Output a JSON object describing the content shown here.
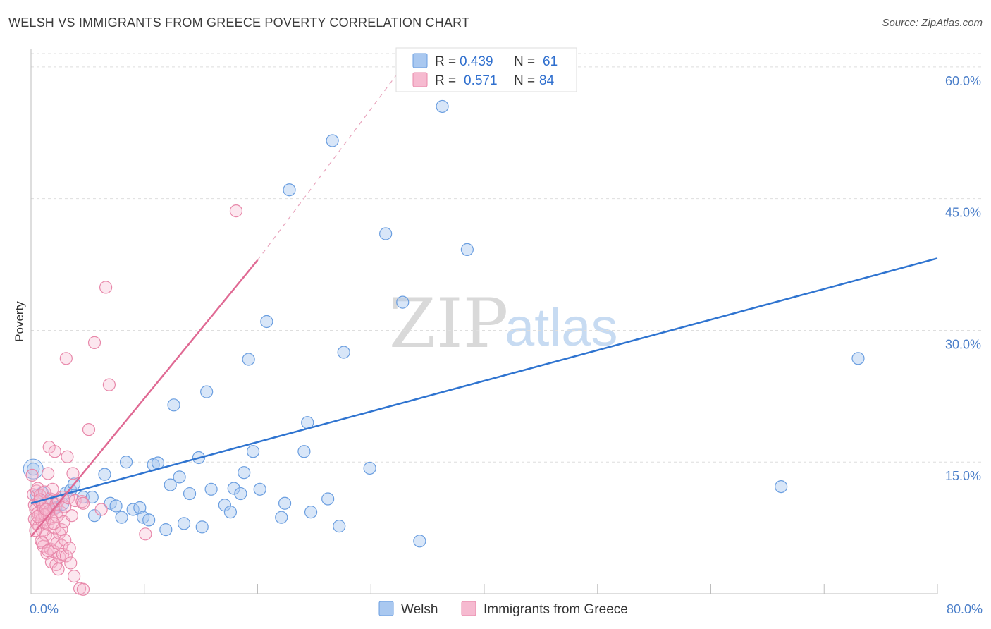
{
  "title": "WELSH VS IMMIGRANTS FROM GREECE POVERTY CORRELATION CHART",
  "source": "Source: ZipAtlas.com",
  "watermark": {
    "a": "ZIP",
    "b": "atlas"
  },
  "chart_data": {
    "type": "scatter",
    "ylabel": "Poverty",
    "xlim": [
      0,
      80
    ],
    "ylim": [
      0,
      62
    ],
    "y_ticks": [
      {
        "value": 15,
        "label": "15.0%"
      },
      {
        "value": 30,
        "label": "30.0%"
      },
      {
        "value": 45,
        "label": "45.0%"
      },
      {
        "value": 60,
        "label": "60.0%"
      }
    ],
    "x_tick_labels": {
      "min": "0.0%",
      "max": "80.0%"
    },
    "grid": "horizontal dashed",
    "legend": {
      "placement": "top-center",
      "rows": [
        {
          "r_label": "R =",
          "r": "0.439",
          "n_label": "N =",
          "n": "61"
        },
        {
          "r_label": "R =",
          "r": "0.571",
          "n_label": "N =",
          "n": "84"
        }
      ]
    },
    "series": [
      {
        "name": "Welsh",
        "color": "#6a9ee0",
        "fill": "#a9c8f0",
        "trend": {
          "x0": 0,
          "y0": 10.3,
          "x1": 80,
          "y1": 38.2
        },
        "points": [
          [
            0.2,
            14.2
          ],
          [
            1.0,
            11.5
          ],
          [
            1.5,
            10.5
          ],
          [
            2.2,
            9.8
          ],
          [
            2.8,
            10.2
          ],
          [
            3.1,
            11.5
          ],
          [
            3.5,
            11.8
          ],
          [
            3.8,
            12.5
          ],
          [
            4.6,
            11.0
          ],
          [
            5.4,
            11.0
          ],
          [
            5.6,
            8.9
          ],
          [
            6.5,
            13.6
          ],
          [
            7.0,
            10.3
          ],
          [
            7.5,
            10.0
          ],
          [
            8.0,
            8.7
          ],
          [
            8.4,
            15.0
          ],
          [
            9.0,
            9.6
          ],
          [
            9.6,
            9.8
          ],
          [
            9.9,
            8.7
          ],
          [
            10.4,
            8.4
          ],
          [
            10.8,
            14.7
          ],
          [
            11.2,
            14.9
          ],
          [
            11.9,
            7.3
          ],
          [
            12.3,
            12.4
          ],
          [
            12.6,
            21.5
          ],
          [
            13.1,
            13.3
          ],
          [
            13.5,
            8.0
          ],
          [
            14.0,
            11.4
          ],
          [
            14.8,
            15.5
          ],
          [
            15.1,
            7.6
          ],
          [
            15.5,
            23.0
          ],
          [
            15.9,
            11.9
          ],
          [
            17.1,
            10.1
          ],
          [
            17.6,
            9.3
          ],
          [
            17.9,
            12.0
          ],
          [
            18.5,
            11.4
          ],
          [
            18.8,
            13.8
          ],
          [
            19.2,
            26.7
          ],
          [
            19.6,
            16.2
          ],
          [
            20.2,
            11.9
          ],
          [
            20.8,
            31.0
          ],
          [
            22.1,
            8.7
          ],
          [
            22.4,
            10.3
          ],
          [
            22.8,
            46.0
          ],
          [
            24.1,
            16.2
          ],
          [
            24.4,
            19.5
          ],
          [
            24.7,
            9.3
          ],
          [
            26.2,
            10.8
          ],
          [
            26.6,
            51.6
          ],
          [
            27.2,
            7.7
          ],
          [
            27.6,
            27.5
          ],
          [
            29.9,
            14.3
          ],
          [
            31.3,
            41.0
          ],
          [
            32.8,
            33.2
          ],
          [
            34.3,
            6.0
          ],
          [
            36.3,
            55.5
          ],
          [
            38.5,
            39.2
          ],
          [
            66.2,
            12.2
          ],
          [
            73.0,
            26.8
          ],
          [
            0.5,
            11.2
          ],
          [
            2.0,
            9.7
          ]
        ]
      },
      {
        "name": "Immigrants from Greece",
        "color": "#e888aa",
        "fill": "#f6bad0",
        "trend": {
          "x0": 0,
          "y0": 6.5,
          "x1": 20,
          "y1": 38.0
        },
        "trend_dashed_to": {
          "x": 32.2,
          "y": 59.0
        },
        "points": [
          [
            0.1,
            13.5
          ],
          [
            0.2,
            11.3
          ],
          [
            0.3,
            10.1
          ],
          [
            0.3,
            8.5
          ],
          [
            0.4,
            9.6
          ],
          [
            0.5,
            11.7
          ],
          [
            0.5,
            8.0
          ],
          [
            0.6,
            9.2
          ],
          [
            0.6,
            12.0
          ],
          [
            0.7,
            7.7
          ],
          [
            0.7,
            10.5
          ],
          [
            0.8,
            9.0
          ],
          [
            0.8,
            11.2
          ],
          [
            0.9,
            6.0
          ],
          [
            0.9,
            8.4
          ],
          [
            1.0,
            10.0
          ],
          [
            1.0,
            7.2
          ],
          [
            1.1,
            9.7
          ],
          [
            1.1,
            5.4
          ],
          [
            1.2,
            11.6
          ],
          [
            1.2,
            8.1
          ],
          [
            1.3,
            10.3
          ],
          [
            1.3,
            6.7
          ],
          [
            1.4,
            9.1
          ],
          [
            1.4,
            4.6
          ],
          [
            1.5,
            13.7
          ],
          [
            1.5,
            7.9
          ],
          [
            1.6,
            16.7
          ],
          [
            1.6,
            9.4
          ],
          [
            1.7,
            5.1
          ],
          [
            1.7,
            10.8
          ],
          [
            1.8,
            8.6
          ],
          [
            1.8,
            3.6
          ],
          [
            1.9,
            6.3
          ],
          [
            1.9,
            11.9
          ],
          [
            2.0,
            4.8
          ],
          [
            2.0,
            9.6
          ],
          [
            2.1,
            16.2
          ],
          [
            2.1,
            7.5
          ],
          [
            2.2,
            3.3
          ],
          [
            2.2,
            10.2
          ],
          [
            2.3,
            5.8
          ],
          [
            2.3,
            8.8
          ],
          [
            2.4,
            2.8
          ],
          [
            2.4,
            10.6
          ],
          [
            2.5,
            6.9
          ],
          [
            2.5,
            4.2
          ],
          [
            2.6,
            9.3
          ],
          [
            2.7,
            5.5
          ],
          [
            2.7,
            7.3
          ],
          [
            2.8,
            11.0
          ],
          [
            2.8,
            4.5
          ],
          [
            2.9,
            8.2
          ],
          [
            3.0,
            9.9
          ],
          [
            3.0,
            6.1
          ],
          [
            3.1,
            26.8
          ],
          [
            3.1,
            4.3
          ],
          [
            3.2,
            15.6
          ],
          [
            3.3,
            10.9
          ],
          [
            3.4,
            5.2
          ],
          [
            3.5,
            3.5
          ],
          [
            3.6,
            8.9
          ],
          [
            3.7,
            13.7
          ],
          [
            3.8,
            2.0
          ],
          [
            3.9,
            10.6
          ],
          [
            4.3,
            0.6
          ],
          [
            4.5,
            10.5
          ],
          [
            4.6,
            10.3
          ],
          [
            4.6,
            0.5
          ],
          [
            5.1,
            18.7
          ],
          [
            5.6,
            28.6
          ],
          [
            6.2,
            9.6
          ],
          [
            6.6,
            34.9
          ],
          [
            6.9,
            23.8
          ],
          [
            10.1,
            6.8
          ],
          [
            18.1,
            43.6
          ],
          [
            0.4,
            7.2
          ],
          [
            1.0,
            5.8
          ],
          [
            1.5,
            4.9
          ],
          [
            2.0,
            8.0
          ],
          [
            0.8,
            10.7
          ],
          [
            1.2,
            9.0
          ],
          [
            0.6,
            8.8
          ],
          [
            1.3,
            9.6
          ]
        ]
      }
    ]
  }
}
